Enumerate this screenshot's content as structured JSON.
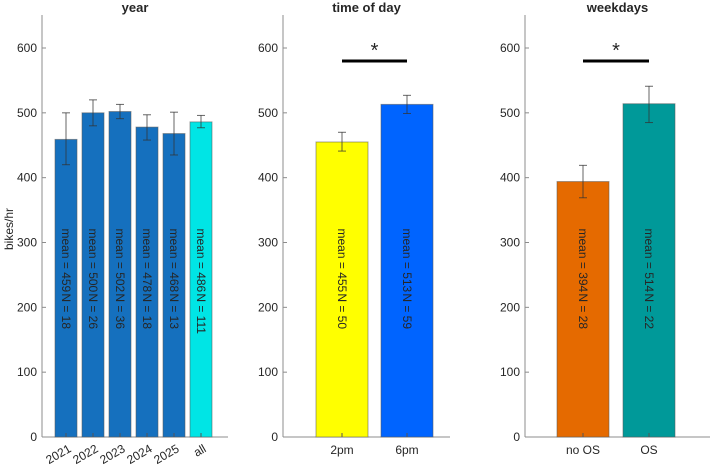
{
  "chart_data": [
    {
      "type": "bar",
      "title": "year",
      "xlabel": "",
      "ylabel": "bikes/hr",
      "ylim": [
        0,
        650
      ],
      "yticks": [
        0,
        100,
        200,
        300,
        400,
        500,
        600
      ],
      "categories": [
        "2021",
        "2022",
        "2023",
        "2024",
        "2025",
        "all"
      ],
      "values": [
        459,
        500,
        502,
        478,
        468,
        486
      ],
      "err_low": [
        420,
        480,
        491,
        458,
        435,
        477
      ],
      "err_high": [
        500,
        520,
        513,
        497,
        501,
        496
      ],
      "colors": [
        "#1570be",
        "#1570be",
        "#1570be",
        "#1570be",
        "#1570be",
        "#00e5e5"
      ],
      "mean_labels": [
        "mean = 459",
        "mean = 500",
        "mean = 502",
        "mean = 478",
        "mean = 468",
        "mean = 486"
      ],
      "n_labels": [
        "N = 18",
        "N = 26",
        "N = 36",
        "N = 18",
        "N = 13",
        "N = 111"
      ],
      "significance": null
    },
    {
      "type": "bar",
      "title": "time of day",
      "xlabel": "",
      "ylabel": "",
      "ylim": [
        0,
        650
      ],
      "yticks": [
        0,
        100,
        200,
        300,
        400,
        500,
        600
      ],
      "categories": [
        "2pm",
        "6pm"
      ],
      "values": [
        455,
        513
      ],
      "err_low": [
        441,
        499
      ],
      "err_high": [
        470,
        527
      ],
      "colors": [
        "#ffff00",
        "#0064ff"
      ],
      "mean_labels": [
        "mean = 455",
        "mean = 513"
      ],
      "n_labels": [
        "N = 50",
        "N = 59"
      ],
      "significance": {
        "line_y": 580,
        "star_y": 600,
        "symbol": "*"
      }
    },
    {
      "type": "bar",
      "title": "weekdays",
      "xlabel": "",
      "ylabel": "",
      "ylim": [
        0,
        650
      ],
      "yticks": [
        0,
        100,
        200,
        300,
        400,
        500,
        600
      ],
      "categories": [
        "no OS",
        "OS"
      ],
      "values": [
        394,
        514
      ],
      "err_low": [
        369,
        485
      ],
      "err_high": [
        419,
        541
      ],
      "colors": [
        "#e56a00",
        "#009999"
      ],
      "mean_labels": [
        "mean = 394",
        "mean = 514"
      ],
      "n_labels": [
        "N = 28",
        "N = 22"
      ],
      "significance": {
        "line_y": 580,
        "star_y": 600,
        "symbol": "*"
      }
    }
  ]
}
